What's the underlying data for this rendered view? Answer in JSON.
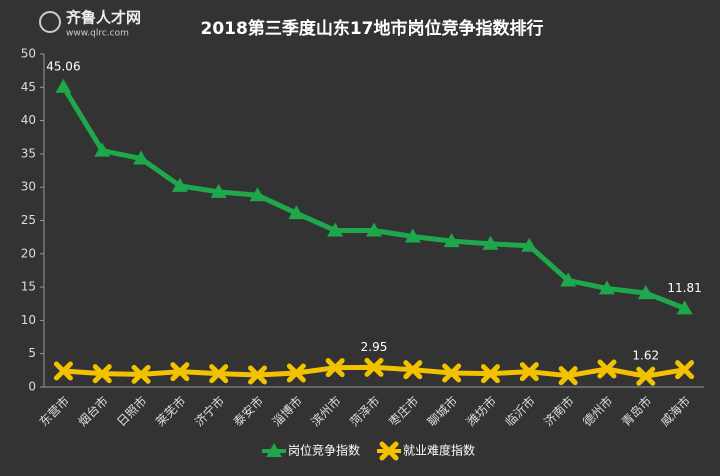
{
  "logo": {
    "name": "齐鲁人才网",
    "url": "www.qlrc.com"
  },
  "chart_data": {
    "type": "line",
    "title": "2018第三季度山东17地市岗位竞争指数排行",
    "categories": [
      "东营市",
      "烟台市",
      "日照市",
      "莱芜市",
      "济宁市",
      "泰安市",
      "淄博市",
      "滨州市",
      "菏泽市",
      "枣庄市",
      "聊城市",
      "潍坊市",
      "临沂市",
      "济南市",
      "德州市",
      "青岛市",
      "威海市"
    ],
    "series": [
      {
        "name": "岗位竞争指数",
        "color": "#1fa74c",
        "marker": "triangle",
        "values": [
          45.06,
          35.5,
          34.3,
          30.2,
          29.3,
          28.8,
          26.1,
          23.5,
          23.5,
          22.6,
          21.9,
          21.5,
          21.2,
          16.0,
          14.8,
          14.1,
          11.81
        ],
        "value_labels": [
          "45.06",
          null,
          null,
          null,
          null,
          null,
          null,
          null,
          null,
          null,
          null,
          null,
          null,
          null,
          null,
          null,
          "11.81"
        ]
      },
      {
        "name": "就业难度指数",
        "color": "#f2c200",
        "marker": "x",
        "values": [
          2.4,
          2.0,
          1.9,
          2.3,
          2.0,
          1.8,
          2.1,
          2.9,
          2.95,
          2.6,
          2.1,
          2.0,
          2.3,
          1.7,
          2.7,
          1.62,
          2.6
        ],
        "value_labels": [
          null,
          null,
          null,
          null,
          null,
          null,
          null,
          null,
          "2.95",
          null,
          null,
          null,
          null,
          null,
          null,
          "1.62",
          null
        ]
      }
    ],
    "ylim": [
      0,
      50
    ],
    "yticks": [
      0,
      5,
      10,
      15,
      20,
      25,
      30,
      35,
      40,
      45,
      50
    ],
    "grid": false,
    "legend": "bottom"
  }
}
